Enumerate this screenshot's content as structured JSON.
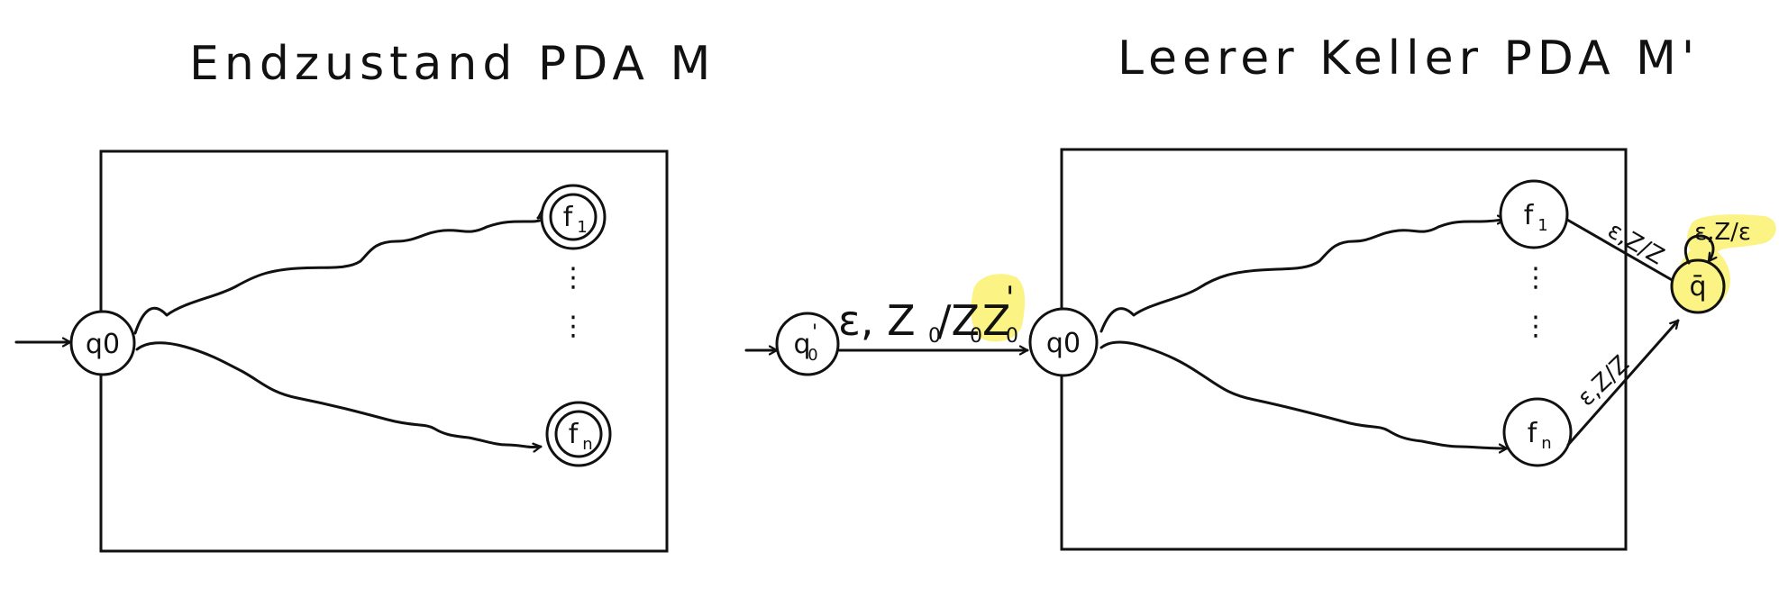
{
  "colors": {
    "ink": "#111111",
    "highlight": "#fbf383",
    "background": "#ffffff"
  },
  "left": {
    "title": "Endzustand PDA M",
    "start_state": "q0",
    "accept_states": [
      {
        "base": "f",
        "sub": "1"
      },
      {
        "base": "f",
        "sub": "n"
      }
    ],
    "dots": "⋮"
  },
  "right": {
    "title": "Leerer Keller PDA M'",
    "new_start_state": {
      "base": "q",
      "sub": "0",
      "sup": "'"
    },
    "start_transition": {
      "prefix": "ε, Z",
      "sub1": "0",
      "mid": "/Z",
      "sub2": "0",
      "highlighted": "Z",
      "sub3": "0",
      "sup3": "'"
    },
    "start_state": "q0",
    "final_states": [
      {
        "base": "f",
        "sub": "1"
      },
      {
        "base": "f",
        "sub": "n"
      }
    ],
    "dots": "⋮",
    "sink_state": "q̄",
    "edge_label_top": "ε,Z/Z",
    "edge_label_bottom": "ε,Z/Z",
    "loop_label": "ε,Z/ε"
  }
}
